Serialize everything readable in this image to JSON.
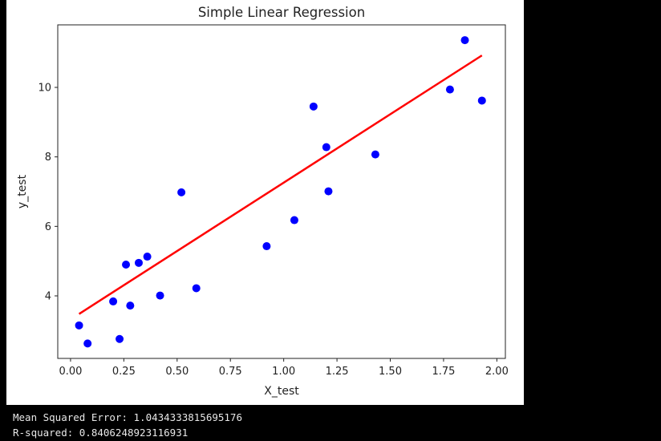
{
  "chart_data": {
    "type": "scatter",
    "title": "Simple Linear Regression",
    "xlabel": "X_test",
    "ylabel": "y_test",
    "xlim": [
      -0.06,
      2.04
    ],
    "ylim": [
      2.2,
      11.8
    ],
    "xticks": [
      0.0,
      0.25,
      0.5,
      0.75,
      1.0,
      1.25,
      1.5,
      1.75,
      2.0
    ],
    "xtick_labels": [
      "0.00",
      "0.25",
      "0.50",
      "0.75",
      "1.00",
      "1.25",
      "1.50",
      "1.75",
      "2.00"
    ],
    "yticks": [
      4,
      6,
      8,
      10
    ],
    "ytick_labels": [
      "4",
      "6",
      "8",
      "10"
    ],
    "grid": false,
    "series": [
      {
        "type": "scatter",
        "color": "#0000ff",
        "points": [
          [
            0.04,
            3.15
          ],
          [
            0.08,
            2.63
          ],
          [
            0.2,
            3.84
          ],
          [
            0.23,
            2.76
          ],
          [
            0.26,
            4.9
          ],
          [
            0.28,
            3.72
          ],
          [
            0.32,
            4.95
          ],
          [
            0.36,
            5.13
          ],
          [
            0.42,
            4.01
          ],
          [
            0.52,
            6.98
          ],
          [
            0.59,
            4.22
          ],
          [
            0.92,
            5.43
          ],
          [
            1.05,
            6.18
          ],
          [
            1.14,
            9.45
          ],
          [
            1.2,
            8.28
          ],
          [
            1.21,
            7.01
          ],
          [
            1.43,
            8.07
          ],
          [
            1.78,
            9.94
          ],
          [
            1.85,
            11.36
          ],
          [
            1.93,
            9.62
          ]
        ]
      },
      {
        "type": "line",
        "color": "#ff0000",
        "points": [
          [
            0.04,
            3.48
          ],
          [
            1.93,
            10.92
          ]
        ]
      }
    ]
  },
  "output": {
    "mse_line": "Mean Squared Error: 1.0434333815695176",
    "r2_line": "R-squared: 0.8406248923116931"
  }
}
